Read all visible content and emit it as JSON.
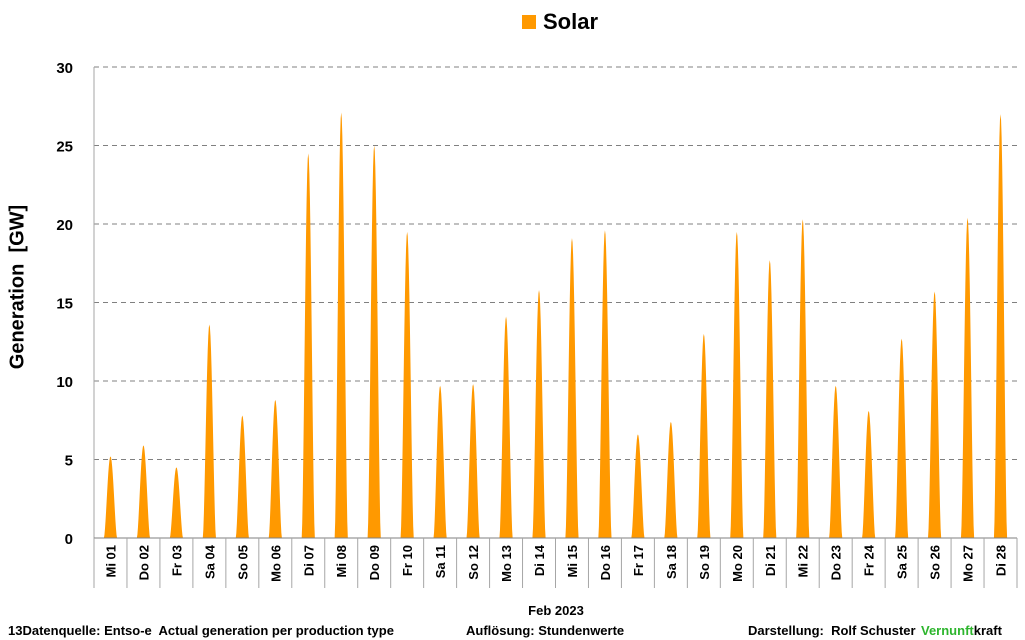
{
  "chart_data": {
    "type": "area",
    "series": [
      {
        "name": "Solar",
        "color": "#FF9900",
        "daily_peaks": [
          5.2,
          5.9,
          4.5,
          13.6,
          7.8,
          8.8,
          24.5,
          27.1,
          25.0,
          19.5,
          9.7,
          9.8,
          14.1,
          15.8,
          19.1,
          19.6,
          6.6,
          7.4,
          13.0,
          19.5,
          17.7,
          20.3,
          9.7,
          8.1,
          12.7,
          15.7,
          20.4,
          27.0
        ]
      }
    ],
    "categories": [
      "Mi 01",
      "Do 02",
      "Fr 03",
      "Sa 04",
      "So 05",
      "Mo 06",
      "Di 07",
      "Mi 08",
      "Do 09",
      "Fr 10",
      "Sa 11",
      "So 12",
      "Mo 13",
      "Di 14",
      "Mi 15",
      "Do 16",
      "Fr 17",
      "Sa 18",
      "So 19",
      "Mo 20",
      "Di 21",
      "Mi 22",
      "Do 23",
      "Fr 24",
      "Sa 25",
      "So 26",
      "Mo 27",
      "Di 28"
    ],
    "xlabel": "Feb 2023",
    "ylabel": "Generation  [GW]",
    "ylim": [
      0,
      30
    ],
    "yticks": [
      0,
      5,
      10,
      15,
      20,
      25,
      30
    ],
    "grid": true,
    "legend": "top"
  },
  "footer": {
    "source": "13Datenquelle: Entso-e  Actual generation per production type",
    "resolution": "Auflösung: Stundenwerte",
    "author": "Darstellung:  Rolf Schuster",
    "brand_green": "Vernunft",
    "brand_rest": "kraft"
  }
}
